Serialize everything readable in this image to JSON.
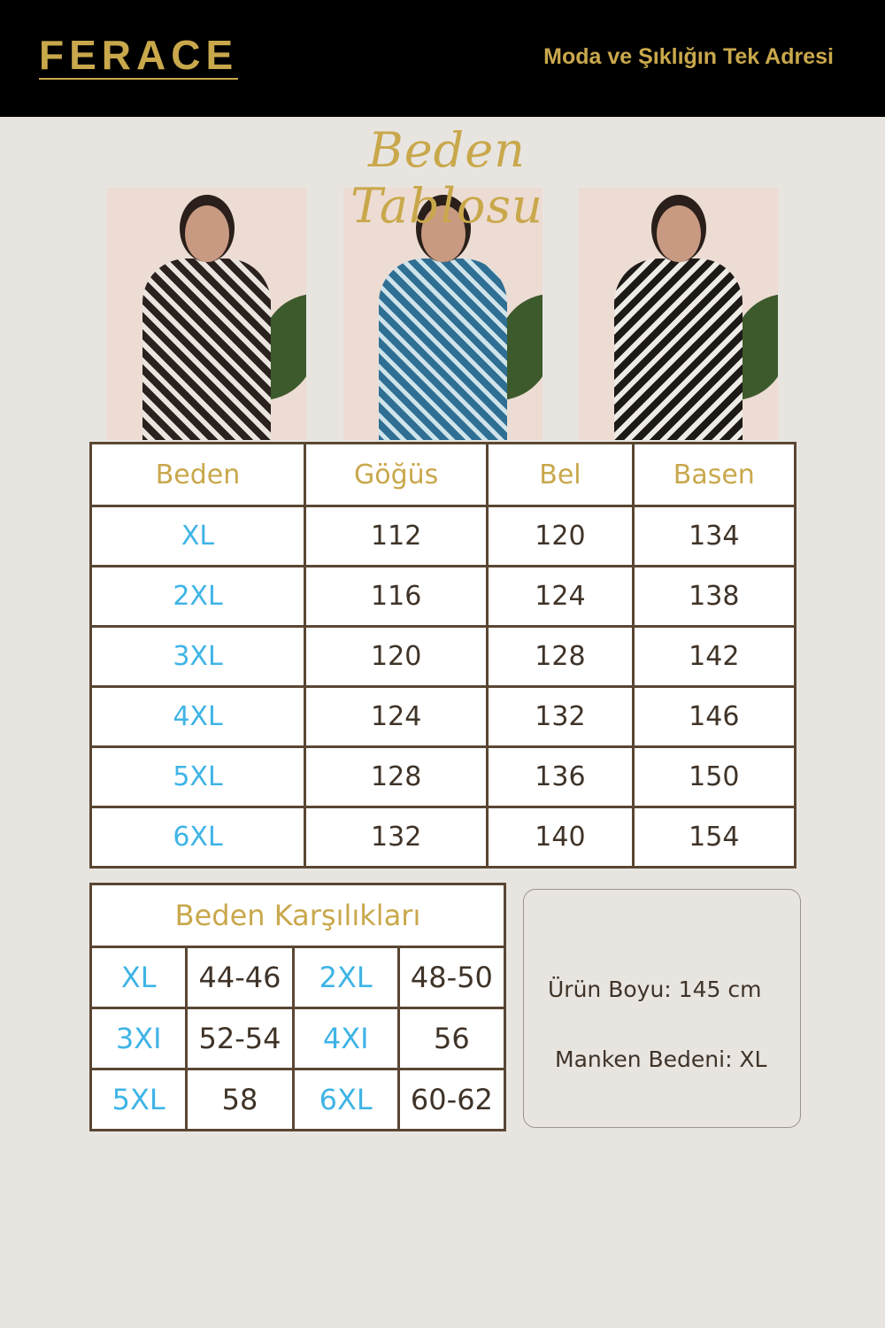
{
  "header": {
    "logo": "FERACE",
    "tagline": "Moda ve Şıklığın Tek Adresi"
  },
  "title": "Beden Tablosu",
  "colors": {
    "gold": "#c9a84c",
    "size_blue": "#3fb4e6",
    "border": "#5a4632",
    "header_bg": "#000000",
    "page_bg": "#e8e5e1"
  },
  "photos": [
    {
      "dress": "black-white leaf print"
    },
    {
      "dress": "blue leaf print"
    },
    {
      "dress": "black-white leaf print"
    }
  ],
  "size_table": {
    "headers": [
      "Beden",
      "Göğüs",
      "Bel",
      "Basen"
    ],
    "rows": [
      [
        "XL",
        "112",
        "120",
        "134"
      ],
      [
        "2XL",
        "116",
        "124",
        "138"
      ],
      [
        "3XL",
        "120",
        "128",
        "142"
      ],
      [
        "4XL",
        "124",
        "132",
        "146"
      ],
      [
        "5XL",
        "128",
        "136",
        "150"
      ],
      [
        "6XL",
        "132",
        "140",
        "154"
      ]
    ]
  },
  "equivalents": {
    "title": "Beden Karşılıkları",
    "rows": [
      [
        "XL",
        "44-46",
        "2XL",
        "48-50"
      ],
      [
        "3XI",
        "52-54",
        "4XI",
        "56"
      ],
      [
        "5XL",
        "58",
        "6XL",
        "60-62"
      ]
    ]
  },
  "info": {
    "length": "Ürün Boyu: 145 cm",
    "model_size": "Manken Bedeni: XL"
  }
}
